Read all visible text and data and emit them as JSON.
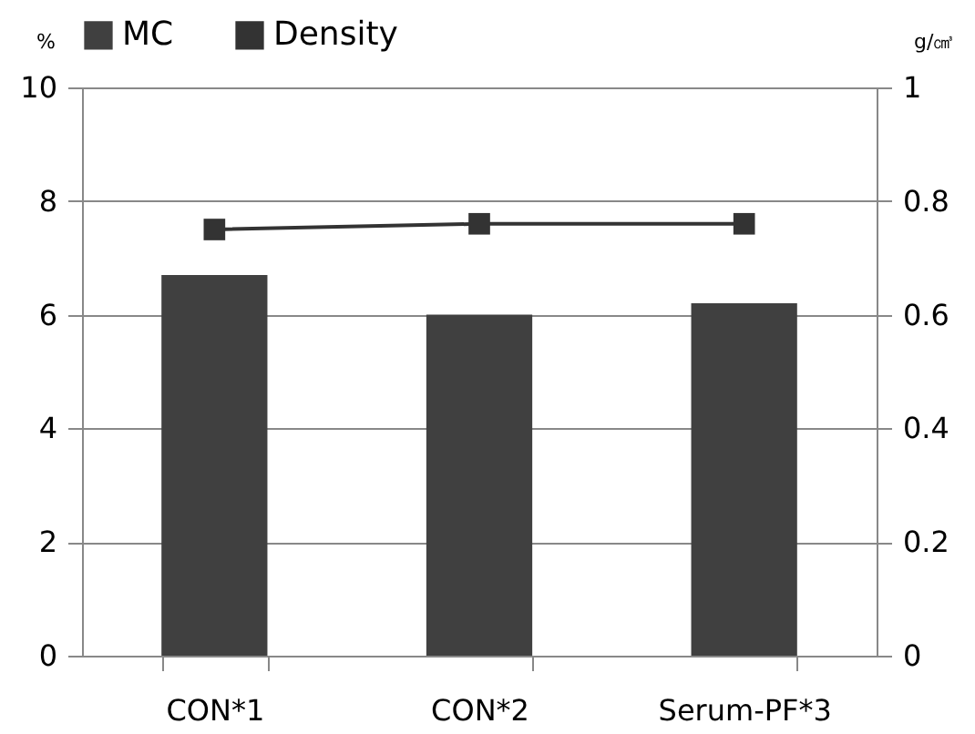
{
  "chart_data": {
    "type": "bar",
    "categories": [
      "CON*1",
      "CON*2",
      "Serum-PF*3"
    ],
    "ylabel": "%",
    "y2label": "g/㎤",
    "series": [
      {
        "name": "MC",
        "color": "#404040",
        "values": [
          6.7,
          6.0,
          6.2
        ]
      },
      {
        "name": "Density",
        "type": "line",
        "axis": "y2",
        "color": "#333333",
        "values": [
          0.75,
          0.76,
          0.76
        ]
      }
    ],
    "ylim": [
      0,
      10
    ],
    "yticks": [
      0,
      2,
      4,
      6,
      8,
      10
    ],
    "y2lim": [
      0,
      1
    ],
    "y2ticks": [
      0,
      0.2,
      0.4,
      0.6,
      0.8,
      1
    ],
    "grid": "y",
    "legend": "top",
    "marker": "square",
    "line_style": "solid"
  }
}
